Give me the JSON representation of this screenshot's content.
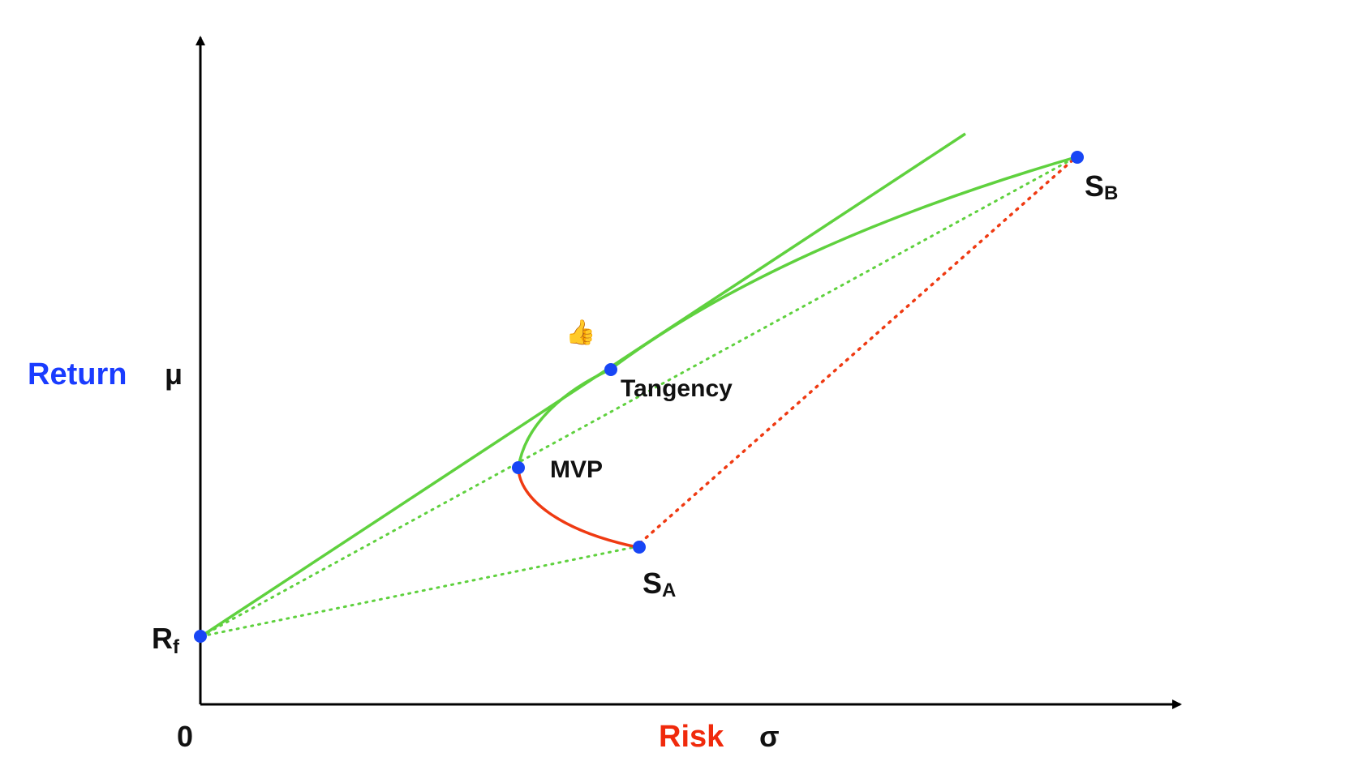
{
  "axes": {
    "y_word": "Return",
    "y_symbol": "μ",
    "x_word": "Risk",
    "x_symbol": "σ",
    "origin": "0"
  },
  "points": {
    "rf": {
      "main": "R",
      "sub": "f"
    },
    "tangency": "Tangency",
    "mvp": "MVP",
    "sa": {
      "main": "S",
      "sub": "A"
    },
    "sb": {
      "main": "S",
      "sub": "B"
    }
  },
  "emoji": "👍",
  "colors": {
    "efficient": "#5fd13e",
    "inefficient": "#ef3a12",
    "point": "#1846f5",
    "axis": "#000000",
    "return_word": "#1a3cff",
    "risk_word": "#f02a0c"
  }
}
